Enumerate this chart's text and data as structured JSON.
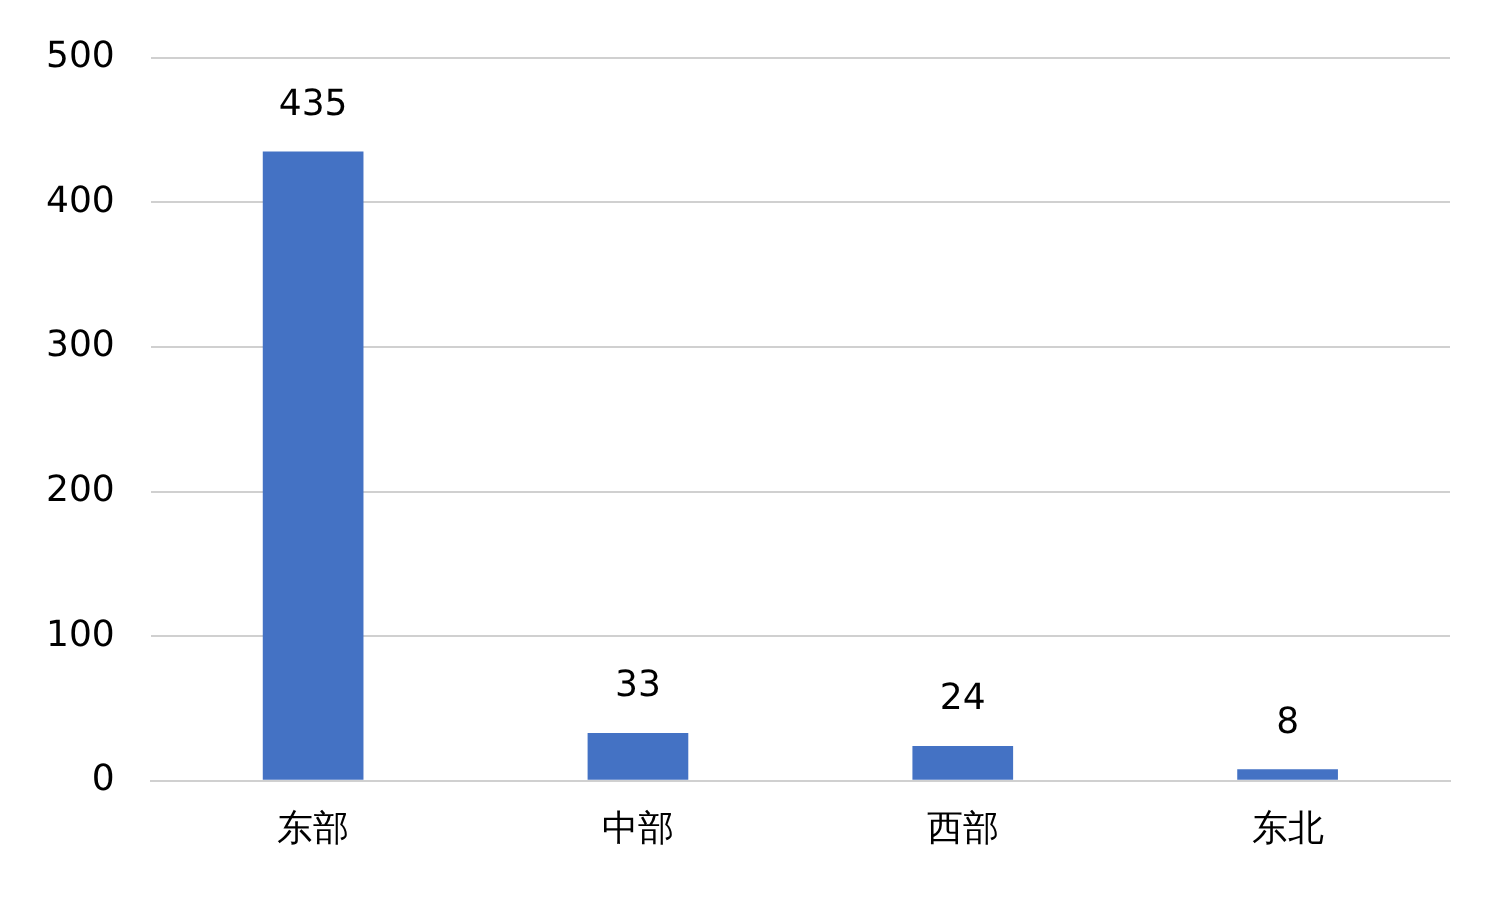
{
  "chart_data": {
    "type": "bar",
    "categories": [
      "东部",
      "中部",
      "西部",
      "东北"
    ],
    "values": [
      435,
      33,
      24,
      8
    ],
    "color": "#4472c4",
    "ylim": [
      0,
      500
    ],
    "yticks": [
      0,
      100,
      200,
      300,
      400,
      500
    ],
    "grid": "y",
    "legend": false,
    "data_labels": true
  }
}
